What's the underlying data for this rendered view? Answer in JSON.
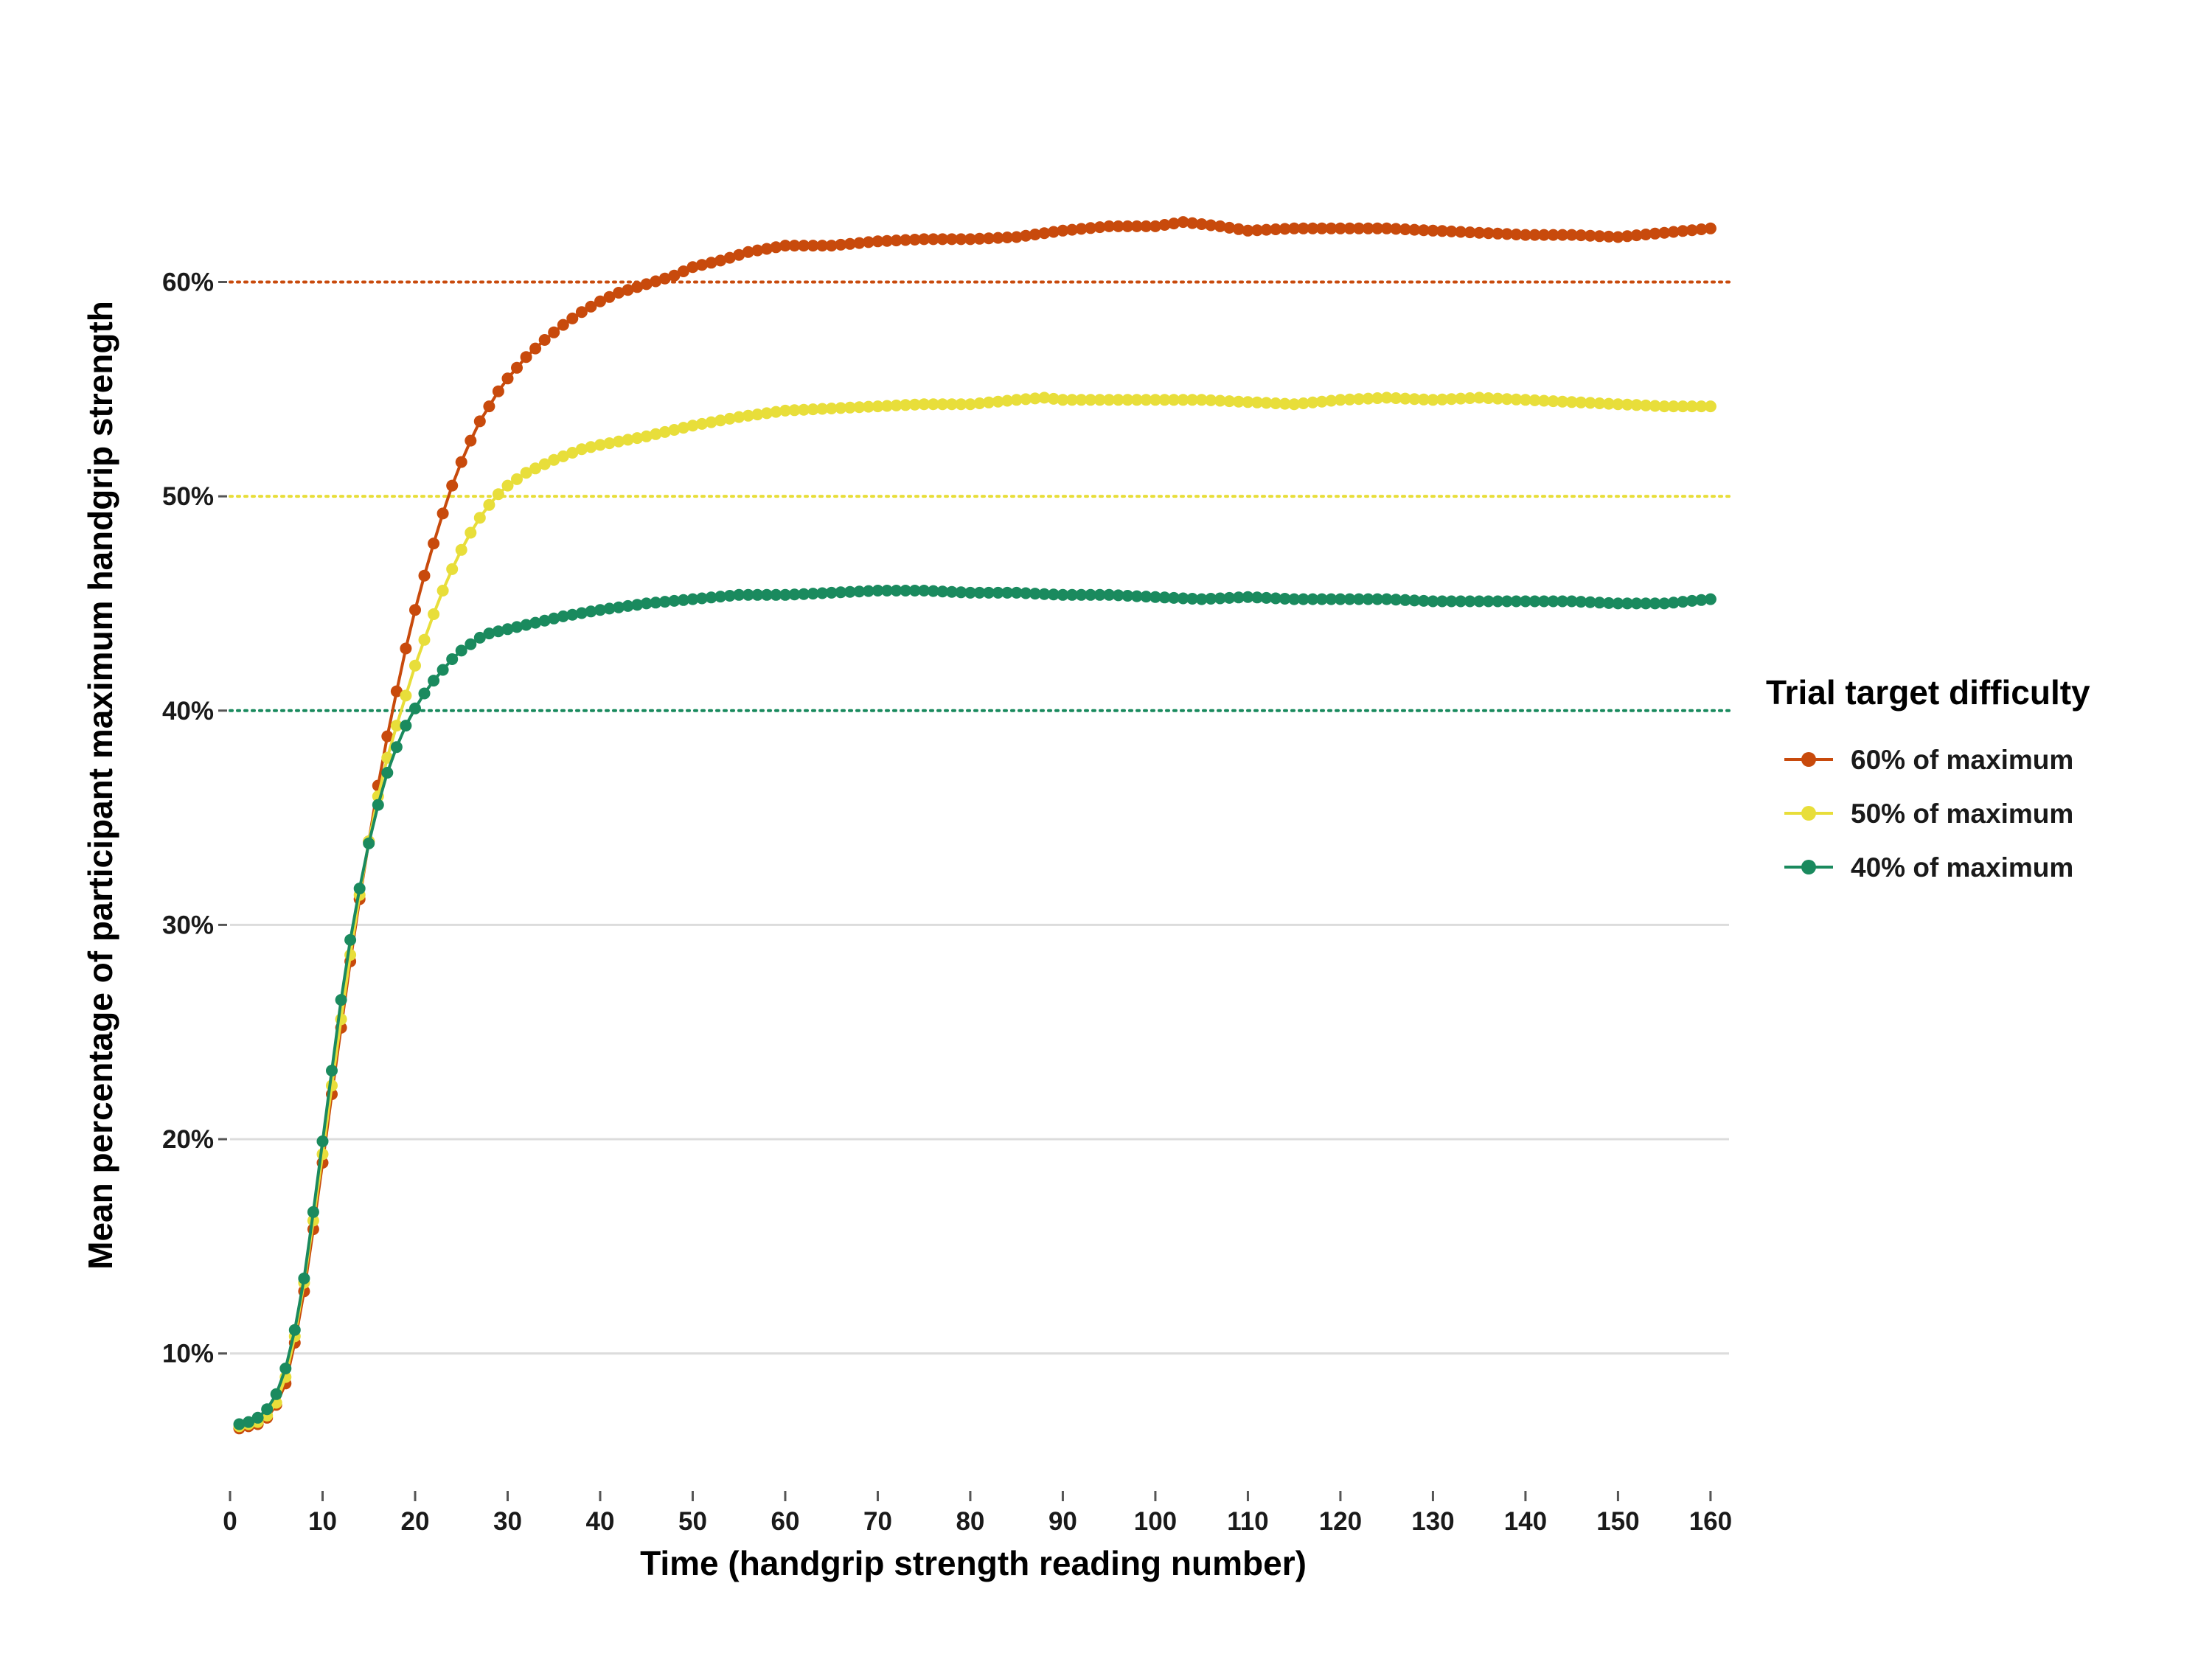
{
  "chart_data": {
    "type": "line",
    "xlabel": "Time (handgrip strength reading number)",
    "ylabel": "Mean percentage of participant maximum handgrip strength",
    "xlim": [
      0,
      162
    ],
    "ylim": [
      4,
      68
    ],
    "x_ticks": [
      0,
      10,
      20,
      30,
      40,
      50,
      60,
      70,
      80,
      90,
      100,
      110,
      120,
      130,
      140,
      150,
      160
    ],
    "y_ticks": [
      {
        "value": 10,
        "label": "10%"
      },
      {
        "value": 20,
        "label": "20%"
      },
      {
        "value": 30,
        "label": "30%"
      },
      {
        "value": 40,
        "label": "40%"
      },
      {
        "value": 50,
        "label": "50%"
      },
      {
        "value": 60,
        "label": "60%"
      }
    ],
    "grid": true,
    "target_lines": [
      {
        "value": 60,
        "color": "#C84A0C",
        "style": "dotted"
      },
      {
        "value": 50,
        "color": "#E8DE3A",
        "style": "dotted"
      },
      {
        "value": 40,
        "color": "#1A8A5E",
        "style": "dotted"
      }
    ],
    "legend": {
      "title": "Trial target difficulty",
      "position": "right"
    },
    "x_range": [
      1,
      160
    ],
    "series": [
      {
        "name": "60% of maximum",
        "color": "#C84A0C",
        "anchors": [
          [
            1,
            6.5
          ],
          [
            2,
            6.6
          ],
          [
            3,
            6.7
          ],
          [
            4,
            7.0
          ],
          [
            5,
            7.6
          ],
          [
            6,
            8.6
          ],
          [
            7,
            10.5
          ],
          [
            8,
            12.9
          ],
          [
            9,
            15.8
          ],
          [
            10,
            18.9
          ],
          [
            11,
            22.1
          ],
          [
            12,
            25.2
          ],
          [
            13,
            28.3
          ],
          [
            14,
            31.2
          ],
          [
            15,
            33.9
          ],
          [
            16,
            36.5
          ],
          [
            17,
            38.8
          ],
          [
            18,
            40.9
          ],
          [
            19,
            42.9
          ],
          [
            20,
            44.7
          ],
          [
            21,
            46.3
          ],
          [
            22,
            47.8
          ],
          [
            23,
            49.2
          ],
          [
            24,
            50.5
          ],
          [
            25,
            51.6
          ],
          [
            26,
            52.6
          ],
          [
            27,
            53.5
          ],
          [
            28,
            54.2
          ],
          [
            29,
            54.9
          ],
          [
            30,
            55.5
          ],
          [
            32,
            56.5
          ],
          [
            34,
            57.3
          ],
          [
            36,
            58.0
          ],
          [
            38,
            58.6
          ],
          [
            40,
            59.1
          ],
          [
            42,
            59.5
          ],
          [
            45,
            59.9
          ],
          [
            48,
            60.3
          ],
          [
            50,
            60.7
          ],
          [
            53,
            61.0
          ],
          [
            56,
            61.4
          ],
          [
            60,
            61.7
          ],
          [
            65,
            61.7
          ],
          [
            70,
            61.9
          ],
          [
            75,
            62.0
          ],
          [
            80,
            62.0
          ],
          [
            85,
            62.1
          ],
          [
            90,
            62.4
          ],
          [
            95,
            62.6
          ],
          [
            100,
            62.6
          ],
          [
            103,
            62.8
          ],
          [
            107,
            62.6
          ],
          [
            110,
            62.4
          ],
          [
            115,
            62.5
          ],
          [
            120,
            62.5
          ],
          [
            125,
            62.5
          ],
          [
            130,
            62.4
          ],
          [
            135,
            62.3
          ],
          [
            140,
            62.2
          ],
          [
            145,
            62.2
          ],
          [
            150,
            62.1
          ],
          [
            155,
            62.3
          ],
          [
            160,
            62.5
          ]
        ]
      },
      {
        "name": "50% of maximum",
        "color": "#E8DE3A",
        "anchors": [
          [
            1,
            6.6
          ],
          [
            2,
            6.7
          ],
          [
            3,
            6.8
          ],
          [
            4,
            7.1
          ],
          [
            5,
            7.7
          ],
          [
            6,
            8.9
          ],
          [
            7,
            10.8
          ],
          [
            8,
            13.3
          ],
          [
            9,
            16.2
          ],
          [
            10,
            19.3
          ],
          [
            11,
            22.5
          ],
          [
            12,
            25.6
          ],
          [
            13,
            28.6
          ],
          [
            14,
            31.4
          ],
          [
            15,
            33.9
          ],
          [
            16,
            36.0
          ],
          [
            17,
            37.8
          ],
          [
            18,
            39.3
          ],
          [
            19,
            40.7
          ],
          [
            20,
            42.1
          ],
          [
            21,
            43.3
          ],
          [
            22,
            44.5
          ],
          [
            23,
            45.6
          ],
          [
            24,
            46.6
          ],
          [
            25,
            47.5
          ],
          [
            26,
            48.3
          ],
          [
            27,
            49.0
          ],
          [
            28,
            49.6
          ],
          [
            29,
            50.1
          ],
          [
            30,
            50.5
          ],
          [
            32,
            51.1
          ],
          [
            35,
            51.7
          ],
          [
            38,
            52.2
          ],
          [
            40,
            52.4
          ],
          [
            45,
            52.8
          ],
          [
            50,
            53.3
          ],
          [
            55,
            53.7
          ],
          [
            60,
            54.0
          ],
          [
            65,
            54.1
          ],
          [
            70,
            54.2
          ],
          [
            75,
            54.3
          ],
          [
            80,
            54.3
          ],
          [
            85,
            54.5
          ],
          [
            88,
            54.6
          ],
          [
            90,
            54.5
          ],
          [
            95,
            54.5
          ],
          [
            100,
            54.5
          ],
          [
            105,
            54.5
          ],
          [
            110,
            54.4
          ],
          [
            115,
            54.3
          ],
          [
            120,
            54.5
          ],
          [
            125,
            54.6
          ],
          [
            130,
            54.5
          ],
          [
            135,
            54.6
          ],
          [
            140,
            54.5
          ],
          [
            145,
            54.4
          ],
          [
            150,
            54.3
          ],
          [
            155,
            54.2
          ],
          [
            160,
            54.2
          ]
        ]
      },
      {
        "name": "40% of maximum",
        "color": "#1A8A5E",
        "anchors": [
          [
            1,
            6.7
          ],
          [
            2,
            6.8
          ],
          [
            3,
            7.0
          ],
          [
            4,
            7.4
          ],
          [
            5,
            8.1
          ],
          [
            6,
            9.3
          ],
          [
            7,
            11.1
          ],
          [
            8,
            13.5
          ],
          [
            9,
            16.6
          ],
          [
            10,
            19.9
          ],
          [
            11,
            23.2
          ],
          [
            12,
            26.5
          ],
          [
            13,
            29.3
          ],
          [
            14,
            31.7
          ],
          [
            15,
            33.8
          ],
          [
            16,
            35.6
          ],
          [
            17,
            37.1
          ],
          [
            18,
            38.3
          ],
          [
            19,
            39.3
          ],
          [
            20,
            40.1
          ],
          [
            21,
            40.8
          ],
          [
            22,
            41.4
          ],
          [
            23,
            41.9
          ],
          [
            24,
            42.4
          ],
          [
            25,
            42.8
          ],
          [
            26,
            43.1
          ],
          [
            27,
            43.4
          ],
          [
            28,
            43.6
          ],
          [
            30,
            43.8
          ],
          [
            33,
            44.1
          ],
          [
            36,
            44.4
          ],
          [
            40,
            44.7
          ],
          [
            45,
            45.0
          ],
          [
            50,
            45.2
          ],
          [
            55,
            45.4
          ],
          [
            60,
            45.4
          ],
          [
            65,
            45.5
          ],
          [
            70,
            45.6
          ],
          [
            75,
            45.6
          ],
          [
            80,
            45.5
          ],
          [
            85,
            45.5
          ],
          [
            90,
            45.4
          ],
          [
            95,
            45.4
          ],
          [
            100,
            45.3
          ],
          [
            105,
            45.2
          ],
          [
            110,
            45.3
          ],
          [
            115,
            45.2
          ],
          [
            120,
            45.2
          ],
          [
            125,
            45.2
          ],
          [
            130,
            45.1
          ],
          [
            135,
            45.1
          ],
          [
            140,
            45.1
          ],
          [
            145,
            45.1
          ],
          [
            150,
            45.0
          ],
          [
            155,
            45.0
          ],
          [
            160,
            45.2
          ]
        ]
      }
    ]
  }
}
